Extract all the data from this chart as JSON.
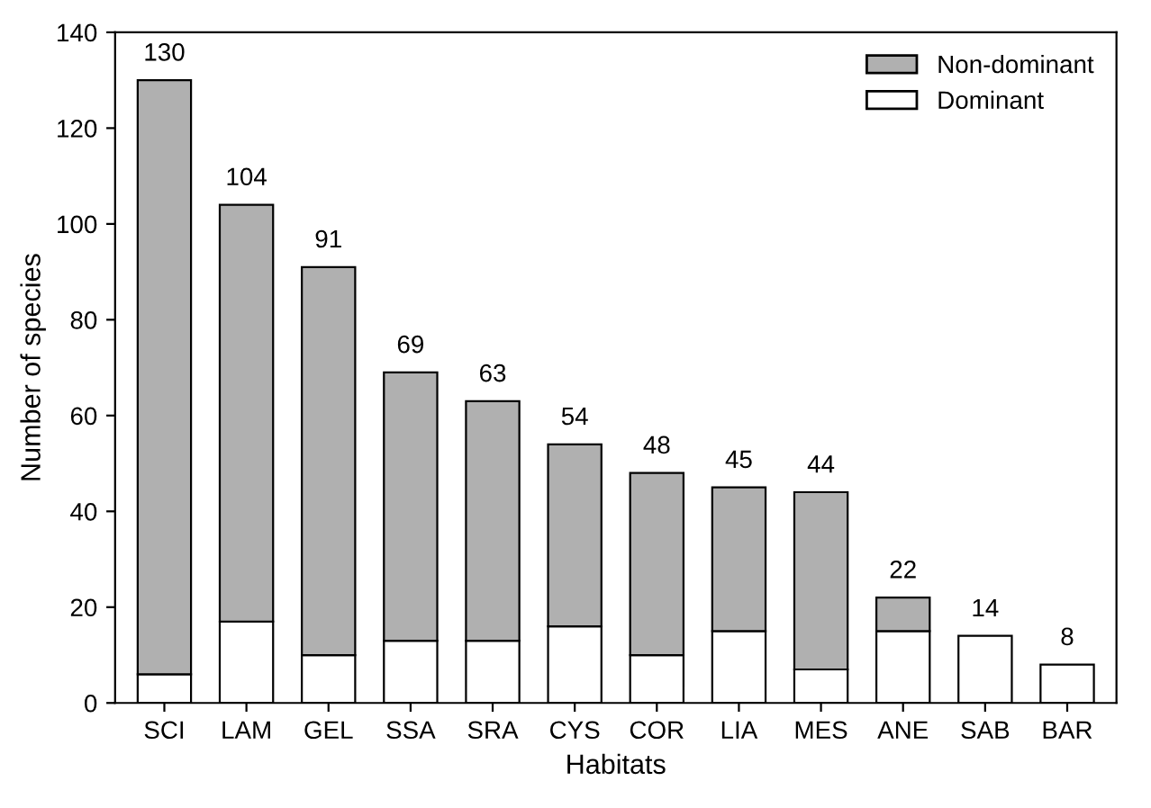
{
  "chart_data": {
    "type": "bar",
    "stacked": true,
    "xlabel": "Habitats",
    "ylabel": "Number of species",
    "categories": [
      "SCI",
      "LAM",
      "GEL",
      "SSA",
      "SRA",
      "CYS",
      "COR",
      "LIA",
      "MES",
      "ANE",
      "SAB",
      "BAR"
    ],
    "series": [
      {
        "name": "Dominant",
        "color": "#ffffff",
        "values": [
          6,
          17,
          10,
          13,
          13,
          16,
          10,
          15,
          7,
          15,
          14,
          8
        ]
      },
      {
        "name": "Non-dominant",
        "color": "#b0b0b0",
        "values": [
          124,
          87,
          81,
          56,
          50,
          38,
          38,
          30,
          37,
          7,
          null,
          null
        ]
      }
    ],
    "totals": [
      "130",
      "104",
      "91",
      "69",
      "63",
      "54",
      "48",
      "45",
      "44",
      "22",
      "14",
      "8"
    ],
    "ylim": [
      0,
      140
    ],
    "yticks": [
      0,
      20,
      40,
      60,
      80,
      100,
      120,
      140
    ],
    "grid": false,
    "legend": "top right"
  }
}
